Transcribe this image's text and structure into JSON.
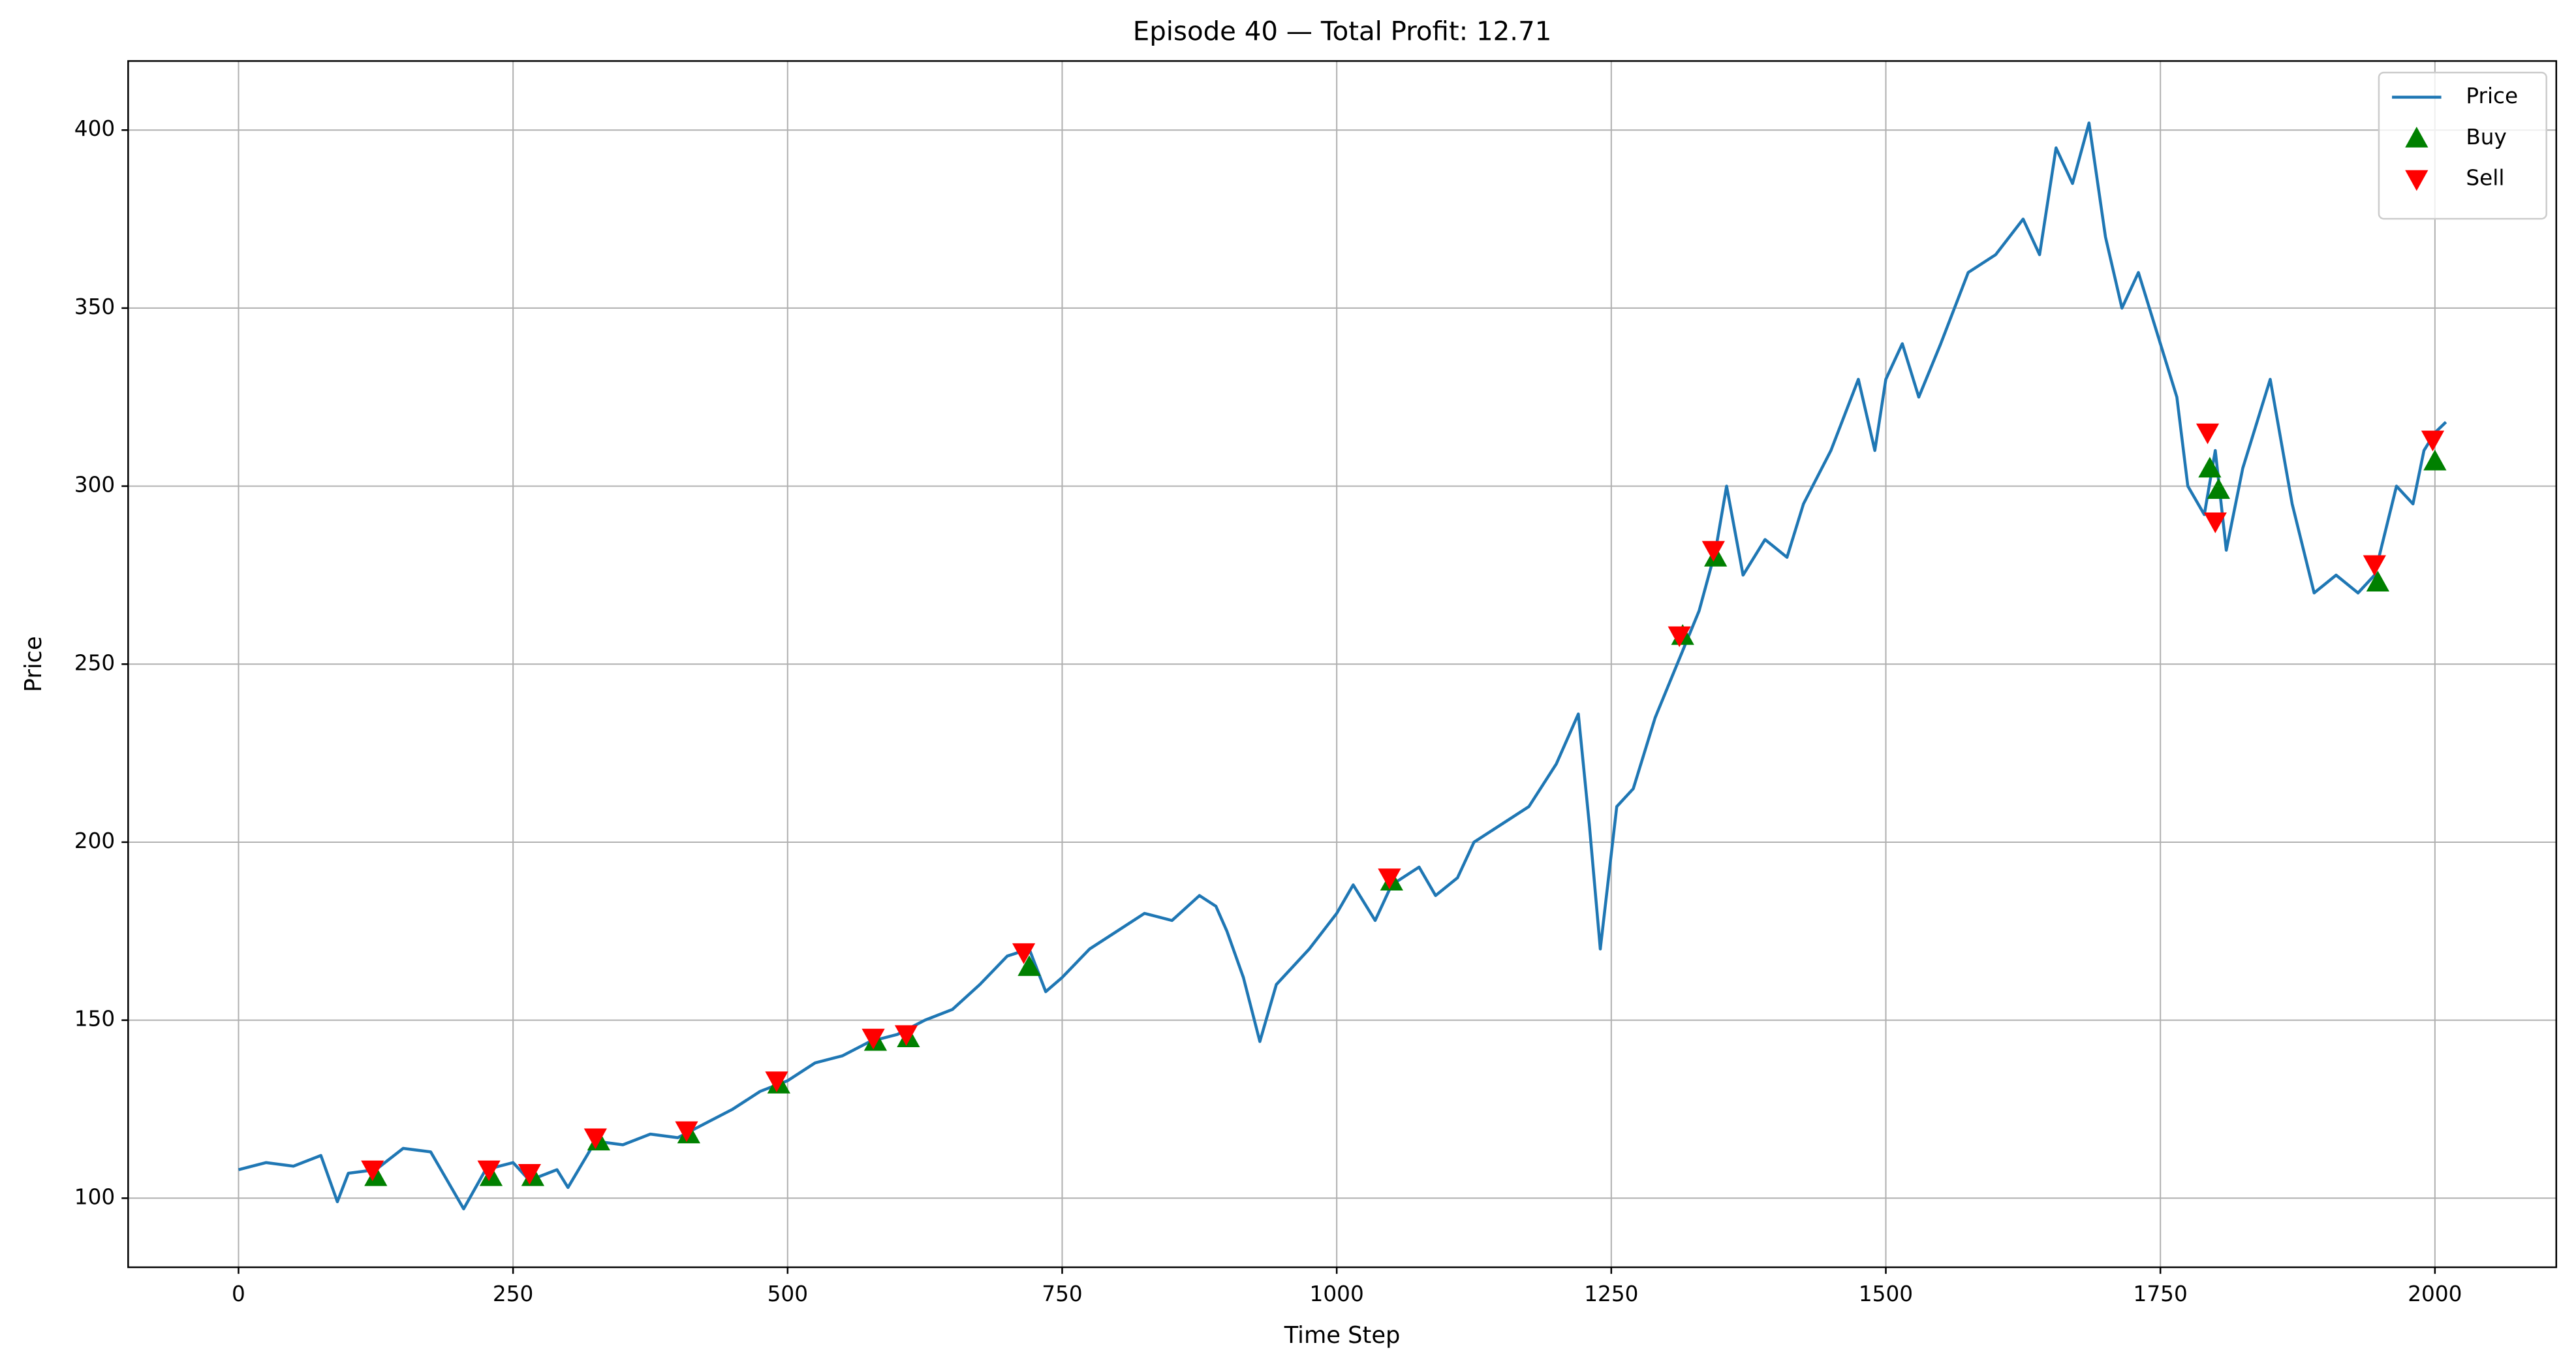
{
  "chart_data": {
    "type": "line",
    "title": "Episode 40 — Total Profit: 12.71",
    "x_label": "Time Step",
    "y_label": "Price",
    "xlim": [
      -100.5,
      2110.5
    ],
    "ylim": [
      80.6,
      419.4
    ],
    "xticks": [
      0,
      250,
      500,
      750,
      1000,
      1250,
      1500,
      1750,
      2000
    ],
    "yticks": [
      100,
      150,
      200,
      250,
      300,
      350,
      400
    ],
    "grid": true,
    "legend": "upper right",
    "series": [
      {
        "name": "Price",
        "color": "#1f77b4",
        "marker": "line",
        "x": [
          0,
          25,
          50,
          75,
          90,
          100,
          125,
          150,
          175,
          190,
          205,
          225,
          250,
          265,
          290,
          300,
          325,
          350,
          375,
          400,
          425,
          450,
          475,
          500,
          525,
          550,
          575,
          600,
          625,
          650,
          675,
          700,
          720,
          735,
          750,
          775,
          800,
          825,
          850,
          875,
          890,
          900,
          915,
          930,
          945,
          960,
          975,
          1000,
          1015,
          1035,
          1050,
          1075,
          1090,
          1110,
          1125,
          1150,
          1175,
          1200,
          1220,
          1230,
          1240,
          1255,
          1270,
          1290,
          1310,
          1330,
          1345,
          1355,
          1370,
          1390,
          1410,
          1425,
          1450,
          1475,
          1490,
          1500,
          1515,
          1530,
          1550,
          1575,
          1600,
          1625,
          1640,
          1655,
          1670,
          1685,
          1700,
          1715,
          1730,
          1750,
          1765,
          1775,
          1790,
          1800,
          1810,
          1825,
          1850,
          1870,
          1890,
          1910,
          1930,
          1945,
          1965,
          1980,
          1990,
          2000,
          2010
        ],
        "values": [
          108,
          110,
          109,
          112,
          99,
          107,
          108,
          114,
          113,
          105,
          97,
          108,
          110,
          105,
          108,
          103,
          116,
          115,
          118,
          117,
          121,
          125,
          130,
          133,
          138,
          140,
          144,
          146,
          150,
          153,
          160,
          168,
          170,
          158,
          162,
          170,
          175,
          180,
          178,
          185,
          182,
          175,
          162,
          144,
          160,
          165,
          170,
          180,
          188,
          178,
          188,
          193,
          185,
          190,
          200,
          205,
          210,
          222,
          236,
          205,
          170,
          210,
          215,
          235,
          250,
          265,
          282,
          300,
          275,
          285,
          280,
          295,
          310,
          330,
          310,
          330,
          340,
          325,
          340,
          360,
          365,
          375,
          365,
          395,
          385,
          402,
          370,
          350,
          360,
          340,
          325,
          300,
          292,
          310,
          282,
          305,
          330,
          295,
          270,
          275,
          270,
          275,
          300,
          295,
          310,
          315,
          318
        ]
      },
      {
        "name": "Buy",
        "color": "#008000",
        "marker": "triangle-up",
        "x": [
          125,
          230,
          268,
          328,
          410,
          492,
          580,
          610,
          720,
          1050,
          1315,
          1345,
          1795,
          1803,
          1948,
          2000
        ],
        "values": [
          106,
          106,
          106,
          116,
          118,
          132,
          144,
          145,
          165,
          189,
          258,
          280,
          305,
          299,
          273,
          307
        ]
      },
      {
        "name": "Sell",
        "color": "#ff0000",
        "marker": "triangle-down",
        "x": [
          122,
          228,
          265,
          325,
          408,
          490,
          578,
          608,
          715,
          1048,
          1312,
          1343,
          1793,
          1800,
          1945,
          1998
        ],
        "values": [
          108,
          108,
          107,
          117,
          119,
          133,
          145,
          146,
          169,
          190,
          258,
          282,
          315,
          290,
          278,
          313
        ]
      }
    ]
  }
}
